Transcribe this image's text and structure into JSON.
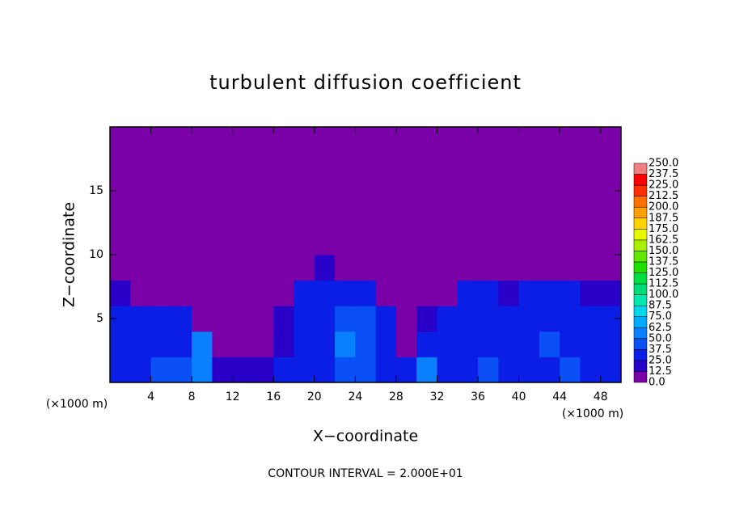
{
  "chart_data": {
    "type": "contour",
    "title": "turbulent diffusion coefficient",
    "x_label": "X−coordinate",
    "y_label": "Z−coordinate",
    "x_unit_left": "(×1000 m)",
    "x_unit_right": "(×1000 m)",
    "footer": "CONTOUR INTERVAL = 2.000E+01",
    "xlim": [
      0,
      50
    ],
    "ylim": [
      0,
      20
    ],
    "xticks": [
      4,
      8,
      12,
      16,
      20,
      24,
      28,
      32,
      36,
      40,
      44,
      48
    ],
    "yticks": [
      5,
      10,
      15
    ],
    "x": [
      1,
      3,
      5,
      7,
      9,
      11,
      13,
      15,
      17,
      19,
      21,
      23,
      25,
      27,
      29,
      31,
      33,
      35,
      37,
      39,
      41,
      43,
      45,
      47,
      49
    ],
    "y": [
      1,
      3,
      5,
      7,
      9,
      11,
      13,
      15,
      17,
      19
    ],
    "z": [
      [
        30,
        35,
        45,
        40,
        60,
        20,
        15,
        20,
        25,
        30,
        35,
        45,
        40,
        35,
        30,
        55,
        30,
        35,
        40,
        35,
        30,
        30,
        40,
        35,
        30
      ],
      [
        30,
        30,
        35,
        30,
        50,
        10,
        5,
        10,
        20,
        30,
        35,
        50,
        45,
        35,
        10,
        25,
        30,
        35,
        30,
        30,
        35,
        40,
        35,
        30,
        30
      ],
      [
        25,
        30,
        30,
        25,
        10,
        5,
        5,
        5,
        15,
        30,
        35,
        45,
        40,
        30,
        5,
        20,
        30,
        30,
        30,
        25,
        35,
        35,
        30,
        25,
        30
      ],
      [
        15,
        5,
        5,
        5,
        5,
        5,
        5,
        5,
        10,
        25,
        30,
        30,
        25,
        5,
        5,
        5,
        10,
        25,
        25,
        20,
        30,
        30,
        25,
        20,
        20
      ],
      [
        0,
        0,
        0,
        0,
        0,
        0,
        0,
        0,
        0,
        5,
        15,
        10,
        5,
        0,
        0,
        0,
        0,
        0,
        0,
        0,
        0,
        5,
        0,
        0,
        0
      ],
      [
        0,
        0,
        0,
        0,
        0,
        0,
        0,
        0,
        0,
        0,
        0,
        0,
        0,
        0,
        0,
        0,
        0,
        0,
        0,
        0,
        0,
        0,
        0,
        0,
        0
      ],
      [
        0,
        0,
        0,
        0,
        0,
        0,
        0,
        0,
        0,
        0,
        0,
        0,
        0,
        0,
        0,
        0,
        0,
        0,
        0,
        0,
        0,
        0,
        0,
        0,
        0
      ],
      [
        0,
        0,
        0,
        0,
        0,
        0,
        0,
        0,
        0,
        0,
        0,
        0,
        0,
        0,
        0,
        0,
        0,
        0,
        0,
        0,
        0,
        0,
        0,
        0,
        0
      ],
      [
        0,
        0,
        0,
        0,
        0,
        0,
        0,
        0,
        0,
        0,
        0,
        0,
        0,
        0,
        0,
        0,
        0,
        0,
        0,
        0,
        0,
        0,
        0,
        0,
        0
      ],
      [
        0,
        0,
        0,
        0,
        0,
        0,
        0,
        0,
        0,
        0,
        0,
        0,
        0,
        0,
        0,
        0,
        0,
        0,
        0,
        0,
        0,
        0,
        0,
        0,
        0
      ]
    ],
    "colorbar": {
      "levels": [
        {
          "value": 0,
          "label": "0.0"
        },
        12.5,
        {
          "value": 25,
          "label": "25.0"
        },
        37.5,
        {
          "value": 50,
          "label": "50.0"
        },
        62.5,
        {
          "value": 75,
          "label": "75.0"
        },
        87.5,
        {
          "value": 100,
          "label": "100.0"
        },
        112.5,
        {
          "value": 125,
          "label": "125.0"
        },
        137.5,
        {
          "value": 150,
          "label": "150.0"
        },
        162.5,
        {
          "value": 175,
          "label": "175.0"
        },
        187.5,
        {
          "value": 200,
          "label": "200.0"
        },
        212.5,
        {
          "value": 225,
          "label": "225.0"
        },
        237.5,
        {
          "value": 250,
          "label": "250.0"
        }
      ],
      "colors": [
        "#7a00a8",
        "#2800c8",
        "#0a1ee6",
        "#0a50f5",
        "#0a80ff",
        "#00aaff",
        "#00d8f0",
        "#00e8b0",
        "#00dc78",
        "#00e040",
        "#20e000",
        "#60e800",
        "#a8f000",
        "#e6f800",
        "#ffd200",
        "#ffa000",
        "#ff7000",
        "#ff3000",
        "#ff0000",
        "#f08080"
      ]
    }
  }
}
